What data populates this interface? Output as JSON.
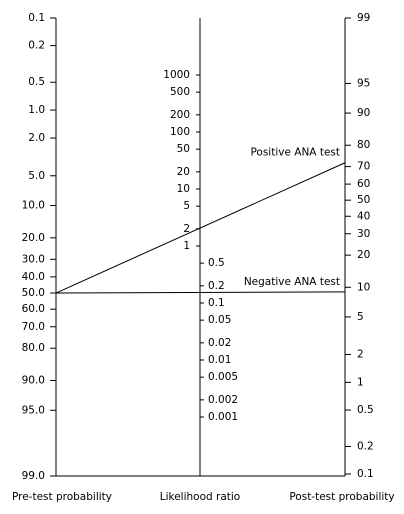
{
  "nomogram": {
    "pre_test_axis": {
      "label": "Pre-test probability",
      "ticks": [
        0.1,
        0.2,
        0.5,
        {
          "value": 1,
          "label": "1.0"
        },
        {
          "value": 2,
          "label": "2.0"
        },
        {
          "value": 5,
          "label": "5.0"
        },
        {
          "value": 10,
          "label": "10.0"
        },
        {
          "value": 20,
          "label": "20.0"
        },
        {
          "value": 30,
          "label": "30.0"
        },
        {
          "value": 40,
          "label": "40.0"
        },
        {
          "value": 50,
          "label": "50.0"
        },
        {
          "value": 60,
          "label": "60.0"
        },
        {
          "value": 70,
          "label": "70.0"
        },
        {
          "value": 80,
          "label": "80.0"
        },
        {
          "value": 90,
          "label": "90.0"
        },
        {
          "value": 95,
          "label": "95.0"
        },
        {
          "value": 99,
          "label": "99.0"
        }
      ]
    },
    "likelihood_axis": {
      "label": "Likelihood ratio",
      "ticks": [
        1000,
        500,
        200,
        100,
        50,
        20,
        10,
        5,
        2,
        1,
        0.5,
        0.2,
        0.1,
        0.05,
        0.02,
        0.01,
        0.005,
        0.002,
        0.001
      ]
    },
    "post_test_axis": {
      "label": "Post-test probability",
      "ticks": [
        99,
        95,
        90,
        80,
        70,
        60,
        50,
        40,
        30,
        20,
        10,
        5,
        2,
        1,
        0.5,
        0.2,
        0.1
      ]
    },
    "lines": [
      {
        "label": "Positive ANA test",
        "pre_test": 50,
        "post_test": 72
      },
      {
        "label": "Negative ANA test",
        "pre_test": 50,
        "post_test": 9
      }
    ]
  }
}
